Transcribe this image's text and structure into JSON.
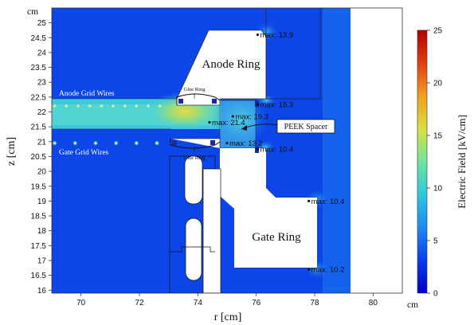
{
  "chart_data": {
    "type": "heatmap",
    "title": "",
    "xlabel": "r [cm]",
    "ylabel": "z [cm]",
    "x_unit": "cm",
    "y_unit": "cm",
    "xlim": [
      69,
      81
    ],
    "ylim": [
      15.9,
      25.5
    ],
    "x_ticks": [
      70,
      72,
      74,
      76,
      78,
      80
    ],
    "y_ticks": [
      16,
      16.5,
      17,
      17.5,
      18,
      18.5,
      19,
      19.5,
      20,
      20.5,
      21,
      21.5,
      22,
      22.5,
      23,
      23.5,
      24,
      24.5,
      25
    ],
    "x_tick_labels": [
      "70",
      "72",
      "74",
      "76",
      "78",
      "80"
    ],
    "y_tick_labels": [
      "16",
      "16.5",
      "17",
      "17.5",
      "18",
      "18.5",
      "19",
      "19.5",
      "20",
      "20.5",
      "21",
      "21.5",
      "22",
      "22.5",
      "23",
      "23.5",
      "24",
      "24.5",
      "25"
    ],
    "colorbar": {
      "label": "Electric Field [kV/cm]",
      "min": 0,
      "max": 25,
      "ticks": [
        0,
        5,
        10,
        15,
        20,
        25
      ],
      "tick_labels": [
        "0",
        "5",
        "10",
        "15",
        "20",
        "25"
      ],
      "colormap": "rainbow",
      "colors": [
        "#0000c8",
        "#0a3cf0",
        "#1e8cf0",
        "#2cc8e0",
        "#6ee6a0",
        "#d8e040",
        "#f0a020",
        "#e04010",
        "#b40000"
      ]
    },
    "regions": [
      {
        "label": "Anode Ring"
      },
      {
        "label": "Gate Ring"
      },
      {
        "label": "PEEK Spacer"
      },
      {
        "label": "Anode Grid Wires"
      },
      {
        "label": "Gate Grid Wires"
      },
      {
        "label": "Glue Ring"
      },
      {
        "label": "Glue Ring"
      }
    ],
    "annotations": [
      {
        "text": "max: 13.9",
        "r": 76.05,
        "z": 24.6
      },
      {
        "text": "max: 18.3",
        "r": 76.05,
        "z": 22.25
      },
      {
        "text": "max: 19.3",
        "r": 75.2,
        "z": 21.85
      },
      {
        "text": "max: 21.4",
        "r": 74.4,
        "z": 21.65
      },
      {
        "text": "max: 13.2",
        "r": 75.0,
        "z": 20.95
      },
      {
        "text": "max: 10.4",
        "r": 76.05,
        "z": 20.75
      },
      {
        "text": "max: 10.4",
        "r": 77.8,
        "z": 19.0
      },
      {
        "text": "max: 10.2",
        "r": 77.8,
        "z": 16.7
      }
    ],
    "anode_wire_z": 22.2,
    "anode_wire_r": [
      69.1,
      69.5,
      69.9,
      70.3,
      70.7,
      71.1,
      71.5,
      71.9,
      72.3,
      72.7
    ],
    "gate_wire_z": 20.95,
    "gate_wire_r": [
      69.1,
      69.8,
      70.5,
      71.2,
      71.9,
      72.6
    ]
  }
}
